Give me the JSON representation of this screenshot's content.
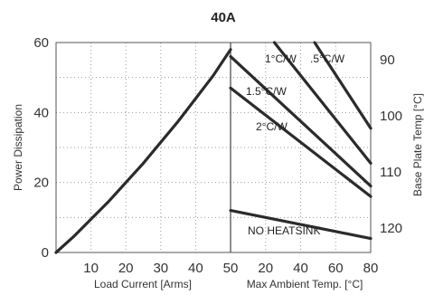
{
  "chart_data": {
    "type": "line",
    "title": "40A",
    "left_panel": {
      "xlabel": "Load Current  [Arms]",
      "ylabel": "Power Dissipation",
      "xlim": [
        0,
        50
      ],
      "ylim": [
        0,
        60
      ],
      "x_ticks": [
        "10",
        "20",
        "30",
        "40",
        "50"
      ],
      "y_ticks": [
        "0",
        "20",
        "40",
        "60"
      ],
      "series": [
        {
          "x": [
            0,
            5,
            10,
            15,
            20,
            25,
            30,
            35,
            40,
            45,
            50
          ],
          "y": [
            0,
            4.5,
            9.5,
            14.5,
            20,
            25.5,
            31.5,
            37.5,
            44,
            50.5,
            58
          ]
        }
      ]
    },
    "right_panel": {
      "xlabel": "Max Ambient Temp. [°C]",
      "ylabel": "Base Plate Temp [°C]",
      "xlim": [
        0,
        80
      ],
      "x_ticks": [
        "20",
        "40",
        "60",
        "80"
      ],
      "y_ticks": [
        "90",
        "100",
        "110",
        "120"
      ],
      "series": [
        {
          "name": ".5°C/W",
          "x": [
            48,
            80
          ],
          "y": [
            60,
            35.5
          ]
        },
        {
          "name": "1°C/W",
          "x": [
            25,
            80
          ],
          "y": [
            60,
            25.5
          ]
        },
        {
          "name": "1.5°C/W",
          "x": [
            0,
            80
          ],
          "y": [
            56,
            19
          ]
        },
        {
          "name": "2°C/W",
          "x": [
            0,
            80
          ],
          "y": [
            47,
            16
          ]
        },
        {
          "name": "NO HEATSINK",
          "x": [
            0,
            80
          ],
          "y": [
            12,
            4
          ]
        }
      ],
      "annotations": [
        ".5°C/W",
        "1°C/W",
        "1.5°C/W",
        "2°C/W",
        "NO HEATSINK"
      ]
    },
    "grid": true,
    "colors": {
      "curve": "#2b2b2b",
      "grid": "#9a9a9a",
      "frame": "#555555"
    }
  }
}
